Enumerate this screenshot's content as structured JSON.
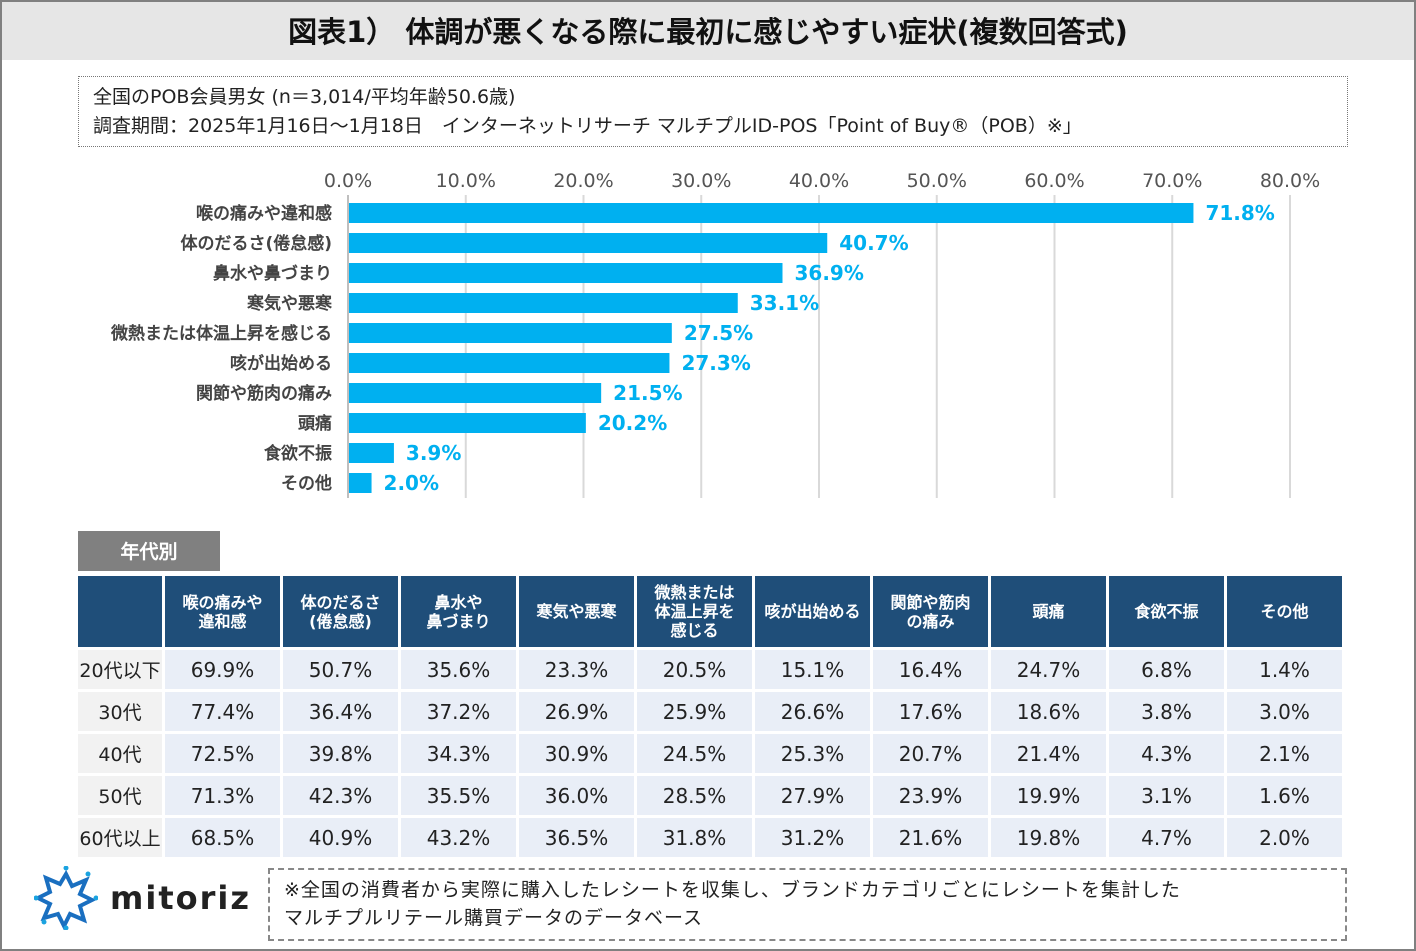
{
  "title": "図表1） 体調が悪くなる際に最初に感じやすい症状(複数回答式)",
  "info": {
    "line1": "全国のPOB会員男女 (n＝3,014/平均年齢50.6歳)",
    "line2": "調査期間：2025年1月16日～1月18日　インターネットリサーチ マルチプルID-POS「Point of Buy®（POB）※」"
  },
  "chart_data": {
    "type": "bar",
    "orientation": "horizontal",
    "categories": [
      "喉の痛みや違和感",
      "体のだるさ(倦怠感)",
      "鼻水や鼻づまり",
      "寒気や悪寒",
      "微熱または体温上昇を感じる",
      "咳が出始める",
      "関節や筋肉の痛み",
      "頭痛",
      "食欲不振",
      "その他"
    ],
    "values": [
      71.8,
      40.7,
      36.9,
      33.1,
      27.5,
      27.3,
      21.5,
      20.2,
      3.9,
      2.0
    ],
    "value_labels": [
      "71.8%",
      "40.7%",
      "36.9%",
      "33.1%",
      "27.5%",
      "27.3%",
      "21.5%",
      "20.2%",
      "3.9%",
      "2.0%"
    ],
    "xlim": [
      0,
      80
    ],
    "ticks": [
      "0.0%",
      "10.0%",
      "20.0%",
      "30.0%",
      "40.0%",
      "50.0%",
      "60.0%",
      "70.0%",
      "80.0%"
    ],
    "grid": true,
    "axis_position": "top",
    "bar_color": "#00b0f0"
  },
  "age_table": {
    "badge": "年代別",
    "headers": [
      "喉の痛みや\n違和感",
      "体のだるさ\n(倦怠感)",
      "鼻水や\n鼻づまり",
      "寒気や悪寒",
      "微熱または\n体温上昇を\n感じる",
      "咳が出始める",
      "関節や筋肉\nの痛み",
      "頭痛",
      "食欲不振",
      "その他"
    ],
    "rows": [
      {
        "label": "20代以下",
        "values": [
          "69.9%",
          "50.7%",
          "35.6%",
          "23.3%",
          "20.5%",
          "15.1%",
          "16.4%",
          "24.7%",
          "6.8%",
          "1.4%"
        ]
      },
      {
        "label": "30代",
        "values": [
          "77.4%",
          "36.4%",
          "37.2%",
          "26.9%",
          "25.9%",
          "26.6%",
          "17.6%",
          "18.6%",
          "3.8%",
          "3.0%"
        ]
      },
      {
        "label": "40代",
        "values": [
          "72.5%",
          "39.8%",
          "34.3%",
          "30.9%",
          "24.5%",
          "25.3%",
          "20.7%",
          "21.4%",
          "4.3%",
          "2.1%"
        ]
      },
      {
        "label": "50代",
        "values": [
          "71.3%",
          "42.3%",
          "35.5%",
          "36.0%",
          "28.5%",
          "27.9%",
          "23.9%",
          "19.9%",
          "3.1%",
          "1.6%"
        ]
      },
      {
        "label": "60代以上",
        "values": [
          "68.5%",
          "40.9%",
          "43.2%",
          "36.5%",
          "31.8%",
          "31.2%",
          "21.6%",
          "19.8%",
          "4.7%",
          "2.0%"
        ]
      }
    ]
  },
  "logo": "mitoriz",
  "note": {
    "line1": "※全国の消費者から実際に購入したレシートを収集し、ブランドカテゴリごとにレシートを集計した",
    "line2": "マルチプルリテール購買データのデータベース"
  }
}
